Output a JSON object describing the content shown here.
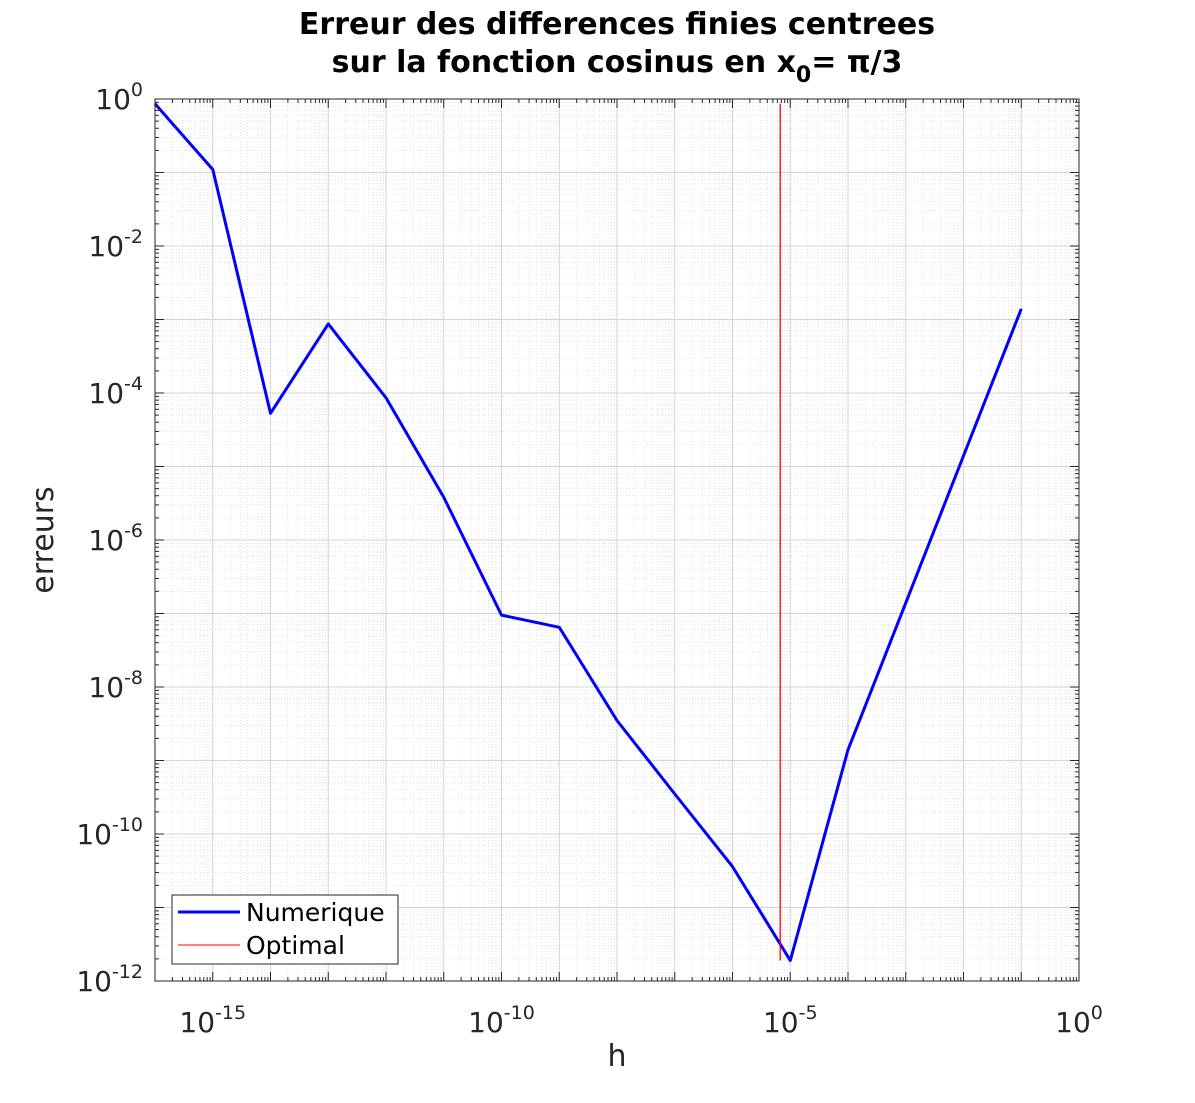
{
  "chart_data": {
    "type": "line",
    "title_line1": "Erreur des differences finies centrees",
    "title_line2_prefix": "sur la fonction cosinus en x",
    "title_line2_sub": "0",
    "title_line2_suffix": "= π/3",
    "xlabel": "h",
    "ylabel": "erreurs",
    "xscale": "log",
    "yscale": "log",
    "xlim": [
      1e-16,
      1
    ],
    "ylim": [
      1e-12,
      1
    ],
    "grid": true,
    "minor_grid": true,
    "x_ticks": [
      {
        "value": 1e-15,
        "base": "10",
        "exp": "-15"
      },
      {
        "value": 1e-10,
        "base": "10",
        "exp": "-10"
      },
      {
        "value": 1e-05,
        "base": "10",
        "exp": "-5"
      },
      {
        "value": 1,
        "base": "10",
        "exp": "0"
      }
    ],
    "y_ticks": [
      {
        "value": 1,
        "base": "10",
        "exp": "0"
      },
      {
        "value": 0.01,
        "base": "10",
        "exp": "-2"
      },
      {
        "value": 0.0001,
        "base": "10",
        "exp": "-4"
      },
      {
        "value": 1e-06,
        "base": "10",
        "exp": "-6"
      },
      {
        "value": 1e-08,
        "base": "10",
        "exp": "-8"
      },
      {
        "value": 1e-10,
        "base": "10",
        "exp": "-10"
      },
      {
        "value": 1e-12,
        "base": "10",
        "exp": "-12"
      }
    ],
    "legend_position": "bottom-left",
    "series": [
      {
        "name": "Numerique",
        "color": "#0000ff",
        "x": [
          1e-16,
          1e-15,
          1e-14,
          1e-13,
          1e-12,
          1e-11,
          1e-10,
          1e-09,
          1e-08,
          1e-07,
          1e-06,
          1e-05,
          0.0001,
          0.001,
          0.01,
          0.1
        ],
        "y": [
          0.86,
          0.11,
          5.3e-05,
          0.00087,
          8.6e-05,
          3.8e-06,
          9.5e-08,
          6.5e-08,
          3.5e-09,
          3.5e-10,
          3.6e-11,
          1.9e-12,
          1.4e-09,
          1.4e-07,
          1.4e-05,
          0.0014
        ]
      },
      {
        "name": "Optimal",
        "color": "#ff0000",
        "x": [
          6.7e-06,
          6.7e-06
        ],
        "y": [
          0.86,
          1.9e-12
        ]
      }
    ]
  }
}
